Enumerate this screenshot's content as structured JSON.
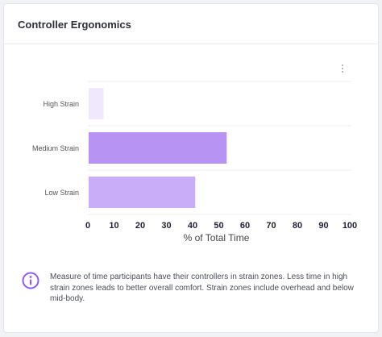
{
  "card": {
    "title": "Controller Ergonomics",
    "menu_icon": "more-vertical-icon",
    "info_icon": "info-circle-icon",
    "info_text": "Measure of time participants have their controllers in strain zones. Less time in high strain zones leads to better overall comfort. Strain zones include overhead and below mid-body."
  },
  "chart_data": {
    "type": "bar",
    "orientation": "horizontal",
    "categories": [
      "High Strain",
      "Medium Strain",
      "Low Strain"
    ],
    "values": [
      6,
      53,
      41
    ],
    "colors": [
      "#f0e8fd",
      "#b794f4",
      "#c9adf8"
    ],
    "xlabel": "% of Total Time",
    "ylabel": "",
    "xlim": [
      0,
      100
    ],
    "xticks": [
      "0",
      "10",
      "20",
      "30",
      "40",
      "50",
      "60",
      "70",
      "80",
      "90",
      "100"
    ],
    "grid": "horizontal"
  }
}
